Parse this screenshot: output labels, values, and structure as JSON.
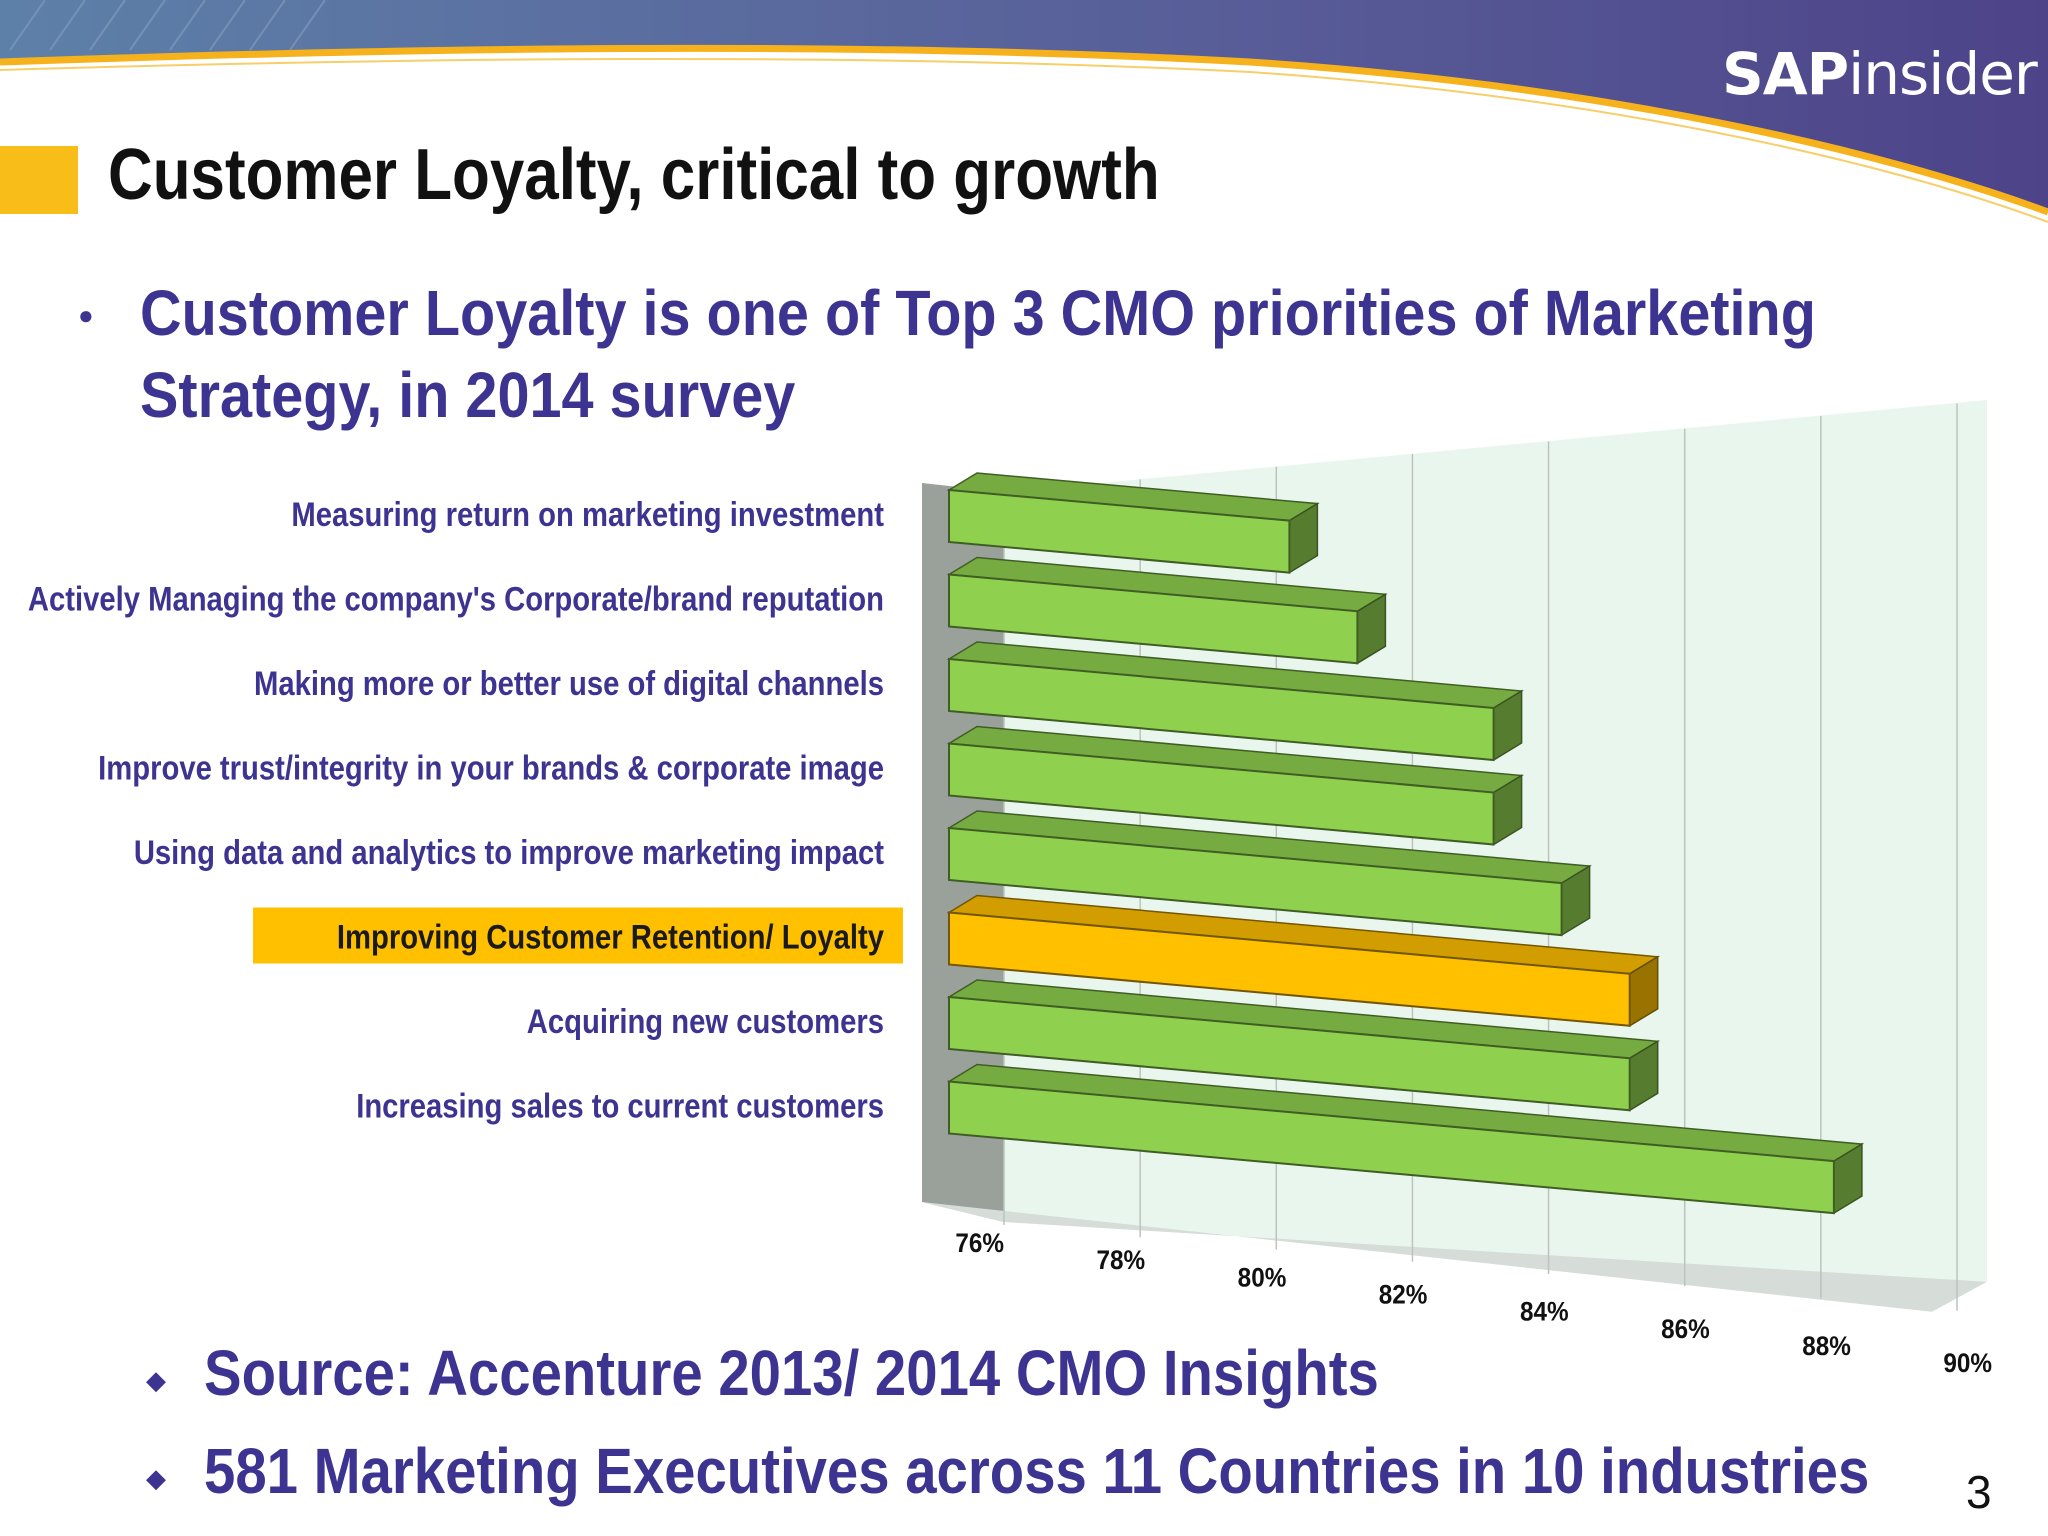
{
  "brand": {
    "logo_bold": "SAP",
    "logo_rest": "insider"
  },
  "slide": {
    "title": "Customer Loyalty, critical to growth",
    "bullet_line1": "Customer Loyalty is one of Top 3 CMO priorities of Marketing",
    "bullet_line2": "Strategy, in 2014 survey",
    "source_bullet": "Source: Accenture 2013/ 2014 CMO Insights",
    "sample_bullet": "581 Marketing Executives across 11 Countries in 10 industries",
    "page_number": "3"
  },
  "colors": {
    "bar_green": "#8fd14f",
    "bar_highlight": "#ffc000",
    "label_text": "#3c3490",
    "title_marker": "#f9bd19"
  },
  "chart_data": {
    "type": "bar",
    "orientation": "horizontal",
    "style": "3d",
    "categories": [
      "Measuring return on marketing investment",
      "Actively Managing the company's Corporate/brand reputation",
      "Making more or better use of digital channels",
      "Improve trust/integrity in your brands & corporate image",
      "Using data and analytics to improve marketing impact",
      "Improving Customer Retention/ Loyalty",
      "Acquiring new customers",
      "Increasing sales to current customers"
    ],
    "values": [
      81,
      82,
      84,
      84,
      85,
      86,
      86,
      89
    ],
    "highlighted_category": "Improving Customer Retention/ Loyalty",
    "xlim": [
      76,
      90
    ],
    "xticks": [
      "76%",
      "78%",
      "80%",
      "82%",
      "84%",
      "86%",
      "88%",
      "90%"
    ],
    "title": "",
    "xlabel": "",
    "ylabel": "",
    "grid": true,
    "legend": "none"
  }
}
